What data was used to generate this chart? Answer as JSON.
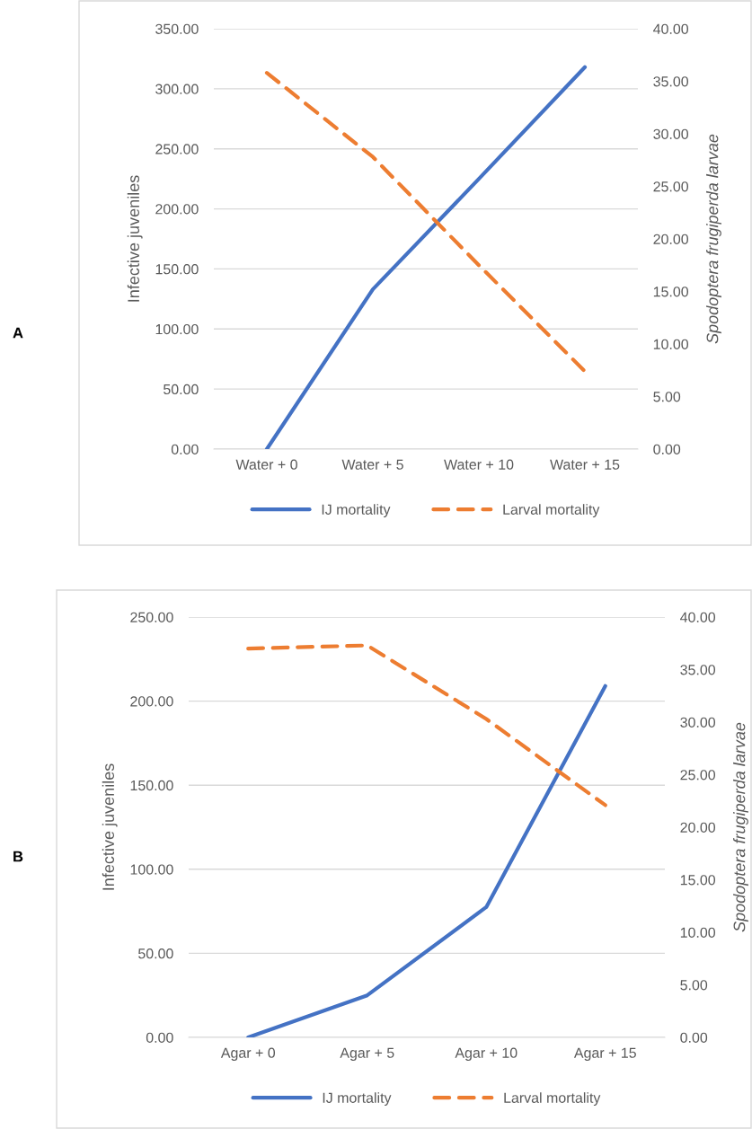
{
  "chart_data": [
    {
      "type": "line",
      "categories": [
        "Water + 0",
        "Water + 5",
        "Water + 10",
        "Water + 15"
      ],
      "ylabel": "Infective juveniles",
      "y2label": "Spodoptera frugiperda larvae",
      "annotations": [
        "A"
      ],
      "ylim": [
        0,
        350
      ],
      "yticks": [
        {
          "value": 0,
          "label": "0.00"
        },
        {
          "value": 50,
          "label": "50.00"
        },
        {
          "value": 100,
          "label": "100.00"
        },
        {
          "value": 150,
          "label": "150.00"
        },
        {
          "value": 200,
          "label": "200.00"
        },
        {
          "value": 250,
          "label": "250.00"
        },
        {
          "value": 300,
          "label": "300.00"
        },
        {
          "value": 350,
          "label": "350.00"
        }
      ],
      "y2lim": [
        0,
        40
      ],
      "y2ticks": [
        {
          "value": 0,
          "label": "0.00"
        },
        {
          "value": 5,
          "label": "5.00"
        },
        {
          "value": 10,
          "label": "10.00"
        },
        {
          "value": 15,
          "label": "15.00"
        },
        {
          "value": 20,
          "label": "20.00"
        },
        {
          "value": 25,
          "label": "25.00"
        },
        {
          "value": 30,
          "label": "30.00"
        },
        {
          "value": 35,
          "label": "35.00"
        },
        {
          "value": 40,
          "label": "40.00"
        }
      ],
      "grid": "y",
      "legend": "bottom",
      "marker": "none",
      "series": [
        {
          "name": "IJ mortality",
          "color": "#4472c4",
          "line_style": "solid",
          "values": [
            0,
            133,
            225,
            318
          ]
        },
        {
          "name": "Larval mortality",
          "color": "#ed7d31",
          "line_style": "dashed",
          "axis": "y2",
          "values": [
            35.8,
            27.8,
            17.5,
            7.4
          ]
        }
      ]
    },
    {
      "type": "line",
      "categories": [
        "Agar + 0",
        "Agar + 5",
        "Agar + 10",
        "Agar + 15"
      ],
      "ylabel": "Infective juveniles",
      "y2label": "Spodoptera frugiperda larvae",
      "annotations": [
        "B"
      ],
      "ylim": [
        0,
        250
      ],
      "yticks": [
        {
          "value": 0,
          "label": "0.00"
        },
        {
          "value": 50,
          "label": "50.00"
        },
        {
          "value": 100,
          "label": "100.00"
        },
        {
          "value": 150,
          "label": "150.00"
        },
        {
          "value": 200,
          "label": "200.00"
        },
        {
          "value": 250,
          "label": "250.00"
        }
      ],
      "y2lim": [
        0,
        40
      ],
      "y2ticks": [
        {
          "value": 0,
          "label": "0.00"
        },
        {
          "value": 5,
          "label": "5.00"
        },
        {
          "value": 10,
          "label": "10.00"
        },
        {
          "value": 15,
          "label": "15.00"
        },
        {
          "value": 20,
          "label": "20.00"
        },
        {
          "value": 25,
          "label": "25.00"
        },
        {
          "value": 30,
          "label": "30.00"
        },
        {
          "value": 35,
          "label": "35.00"
        },
        {
          "value": 40,
          "label": "40.00"
        }
      ],
      "grid": "y",
      "legend": "bottom",
      "marker": "none",
      "series": [
        {
          "name": "IJ mortality",
          "color": "#4472c4",
          "line_style": "solid",
          "values": [
            0,
            25,
            77.5,
            209
          ]
        },
        {
          "name": "Larval mortality",
          "color": "#ed7d31",
          "line_style": "dashed",
          "axis": "y2",
          "values": [
            37.0,
            37.3,
            30.3,
            22.1
          ]
        }
      ]
    }
  ]
}
